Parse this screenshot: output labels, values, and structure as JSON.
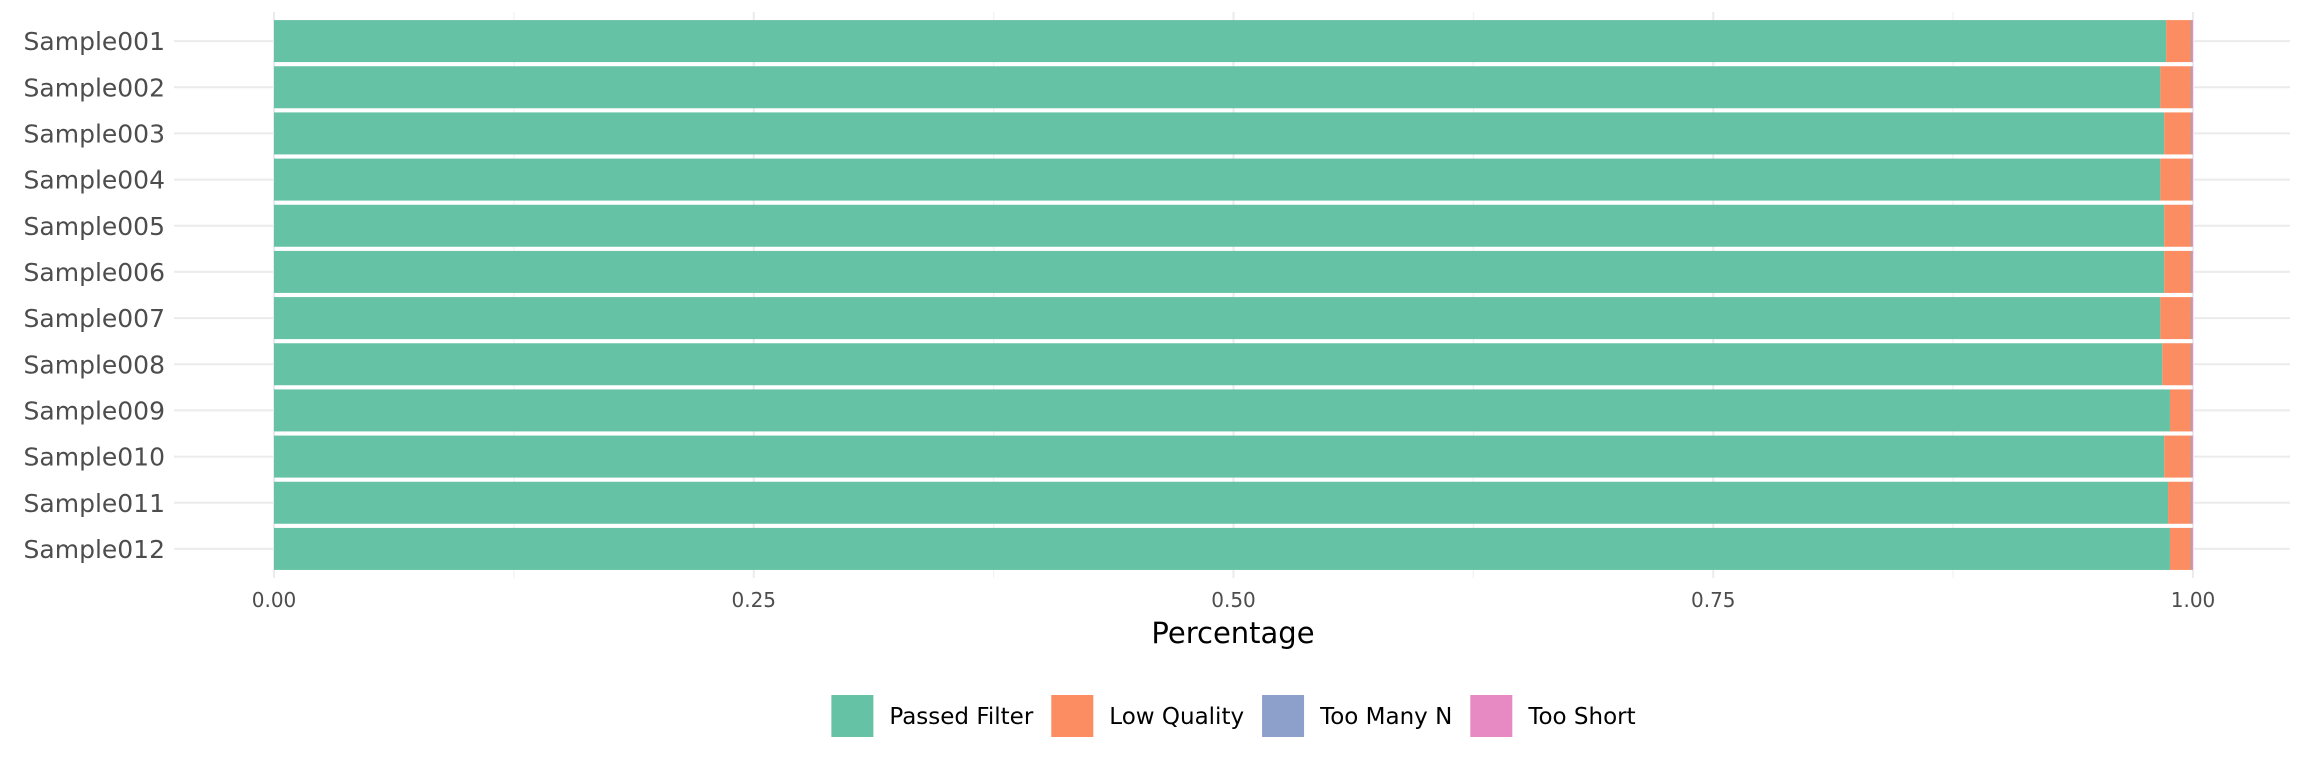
{
  "chart_data": {
    "type": "bar",
    "orientation": "horizontal",
    "stacked": true,
    "xlabel": "Percentage",
    "ylabel": "",
    "xlim": [
      0,
      1
    ],
    "x_ticks": [
      "0.00",
      "0.25",
      "0.50",
      "0.75",
      "1.00"
    ],
    "x_tick_values": [
      0,
      0.25,
      0.5,
      0.75,
      1
    ],
    "grid": true,
    "legend_position": "bottom",
    "categories": [
      "Sample001",
      "Sample002",
      "Sample003",
      "Sample004",
      "Sample005",
      "Sample006",
      "Sample007",
      "Sample008",
      "Sample009",
      "Sample010",
      "Sample011",
      "Sample012"
    ],
    "series": [
      {
        "name": "Passed Filter",
        "color": "#66c2a5",
        "values": [
          0.986,
          0.983,
          0.985,
          0.983,
          0.985,
          0.985,
          0.983,
          0.984,
          0.988,
          0.985,
          0.987,
          0.988
        ]
      },
      {
        "name": "Low Quality",
        "color": "#fc8d62",
        "values": [
          0.013,
          0.016,
          0.014,
          0.016,
          0.014,
          0.014,
          0.016,
          0.015,
          0.011,
          0.014,
          0.012,
          0.011
        ]
      },
      {
        "name": "Too Many N",
        "color": "#8da0cb",
        "values": [
          0.0005,
          0.0005,
          0.0005,
          0.0005,
          0.0005,
          0.0005,
          0.0005,
          0.0005,
          0.0005,
          0.0005,
          0.0005,
          0.0005
        ]
      },
      {
        "name": "Too Short",
        "color": "#e78ac3",
        "values": [
          0.0005,
          0.0005,
          0.0005,
          0.0005,
          0.0005,
          0.0005,
          0.0005,
          0.0005,
          0.0005,
          0.0005,
          0.0005,
          0.0005
        ]
      }
    ]
  }
}
